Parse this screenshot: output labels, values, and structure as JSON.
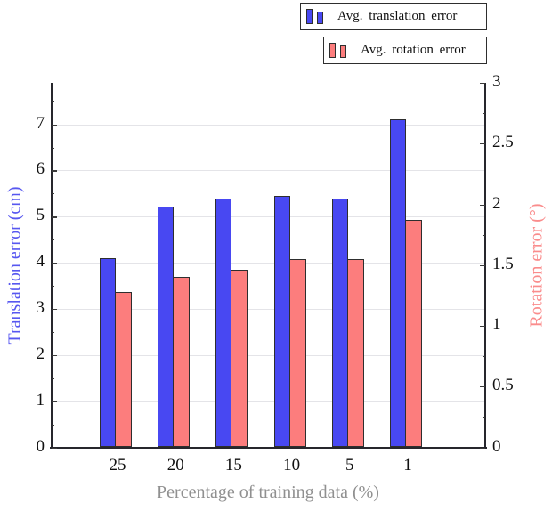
{
  "chart_data": {
    "type": "bar",
    "categories": [
      "25",
      "20",
      "15",
      "10",
      "5",
      "1"
    ],
    "series": [
      {
        "name": "Avg. translation error",
        "axis": "left",
        "color": "#4848f2",
        "values": [
          4.1,
          5.22,
          5.4,
          5.45,
          5.4,
          7.1
        ]
      },
      {
        "name": "Avg. rotation error",
        "axis": "right",
        "color": "#fc7d7d",
        "values": [
          1.28,
          1.4,
          1.46,
          1.55,
          1.55,
          1.87
        ]
      }
    ],
    "xlabel": "Percentage of training data (%)",
    "left_axis": {
      "label": "Translation error (cm)",
      "color": "#5757f0",
      "tick_labels": [
        "0",
        "1",
        "2",
        "3",
        "4",
        "5",
        "6",
        "7"
      ],
      "range": [
        0,
        7.9
      ],
      "minor_tick_step": 0.5
    },
    "right_axis": {
      "label": "Rotation error (°)",
      "color": "#fa8c8c",
      "tick_labels": [
        "0",
        "0.5",
        "1",
        "1.5",
        "2",
        "2.5",
        "3"
      ],
      "range": [
        0,
        3
      ],
      "minor_tick_step": 0.25
    },
    "grid": "horizontal, at left-axis major ticks",
    "legend_position": "top-right, stacked boxes",
    "styles": {
      "bar_border_color": "#2e2e2e",
      "gridline_color": "#e4e4e8",
      "axis_line_color": "#26262c",
      "tick_label_color": "#111111",
      "xlabel_color": "#909090",
      "background": "#ffffff"
    }
  }
}
